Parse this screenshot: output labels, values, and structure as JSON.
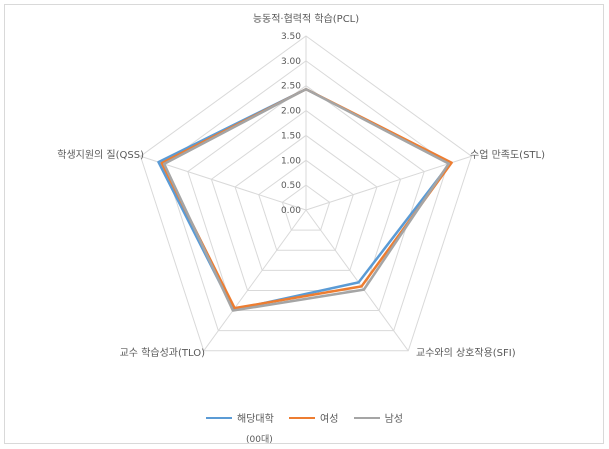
{
  "chart_data": {
    "type": "radar",
    "axes": [
      "능동적·협력적 학습(PCL)",
      "수업 만족도(STL)",
      "교수와의 상호작용(SFI)",
      "교수 학습성과(TLO)",
      "학생지원의 질(QSS)"
    ],
    "rlim": [
      0,
      3.5
    ],
    "ticks": [
      "0.00",
      "0.50",
      "1.00",
      "1.50",
      "2.00",
      "2.50",
      "3.00",
      "3.50"
    ],
    "grid": true,
    "legend_position": "bottom",
    "series": [
      {
        "name": "해당대학",
        "color": "#5b9bd5",
        "values": [
          2.43,
          3.05,
          1.8,
          2.48,
          3.12
        ]
      },
      {
        "name": "여성",
        "color": "#ed7d31",
        "values": [
          2.43,
          3.08,
          1.9,
          2.44,
          3.05
        ]
      },
      {
        "name": "남성",
        "color": "#a5a5a5",
        "values": [
          2.43,
          3.02,
          1.98,
          2.5,
          3.0
        ]
      }
    ],
    "legend_note": "(00대)"
  }
}
